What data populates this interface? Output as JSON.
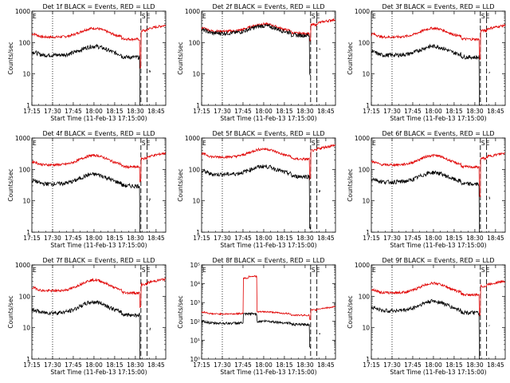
{
  "x_ticks": [
    "17:15",
    "17:30",
    "17:45",
    "18:00",
    "18:15",
    "18:30",
    "18:45"
  ],
  "x_start_minutes": 1035,
  "x_end_minutes": 1132,
  "xlabel": "Start Time (11-Feb-13 17:15:00)",
  "ylabel": "Counts/sec",
  "markers": {
    "S": "S",
    "E": "E"
  },
  "colors": {
    "events": "#000000",
    "lld": "#e00000"
  },
  "panels": [
    {
      "title": "Det 1f BLACK = Events, RED = LLD",
      "ylim": [
        1,
        1000
      ],
      "yticks": [
        "1",
        "10",
        "100",
        "1000"
      ],
      "yvals": [
        1,
        10,
        100,
        1000
      ],
      "lld_base": 150,
      "events_base": 40,
      "hump": 1.9,
      "drop": 0.01
    },
    {
      "title": "Det 2f BLACK = Events, RED = LLD",
      "ylim": [
        1,
        1000
      ],
      "yticks": [
        "1",
        "10",
        "100",
        "1000"
      ],
      "yvals": [
        1,
        10,
        100,
        1000
      ],
      "lld_base": 230,
      "events_base": 200,
      "hump": 1.7,
      "drop": 0.05
    },
    {
      "title": "Det 3f BLACK = Events, RED = LLD",
      "ylim": [
        1,
        1000
      ],
      "yticks": [
        "1",
        "10",
        "100",
        "1000"
      ],
      "yvals": [
        1,
        10,
        100,
        1000
      ],
      "lld_base": 150,
      "events_base": 40,
      "hump": 1.9,
      "drop": 0.02
    },
    {
      "title": "Det 4f BLACK = Events, RED = LLD",
      "ylim": [
        1,
        1000
      ],
      "yticks": [
        "1",
        "10",
        "100",
        "1000"
      ],
      "yvals": [
        1,
        10,
        100,
        1000
      ],
      "lld_base": 140,
      "events_base": 35,
      "hump": 2.0,
      "drop": 0.03
    },
    {
      "title": "Det 5f BLACK = Events, RED = LLD",
      "ylim": [
        1,
        1000
      ],
      "yticks": [
        "1",
        "10",
        "100",
        "1000"
      ],
      "yvals": [
        1,
        10,
        100,
        1000
      ],
      "lld_base": 250,
      "events_base": 70,
      "hump": 1.8,
      "drop": 0.02
    },
    {
      "title": "Det 6f BLACK = Events, RED = LLD",
      "ylim": [
        1,
        1000
      ],
      "yticks": [
        "1",
        "10",
        "100",
        "1000"
      ],
      "yvals": [
        1,
        10,
        100,
        1000
      ],
      "lld_base": 140,
      "events_base": 40,
      "hump": 2.0,
      "drop": 0.01
    },
    {
      "title": "Det 7f BLACK = Events, RED = LLD",
      "ylim": [
        1,
        1000
      ],
      "yticks": [
        "1",
        "10",
        "100",
        "1000"
      ],
      "yvals": [
        1,
        10,
        100,
        1000
      ],
      "lld_base": 150,
      "events_base": 30,
      "hump": 2.2,
      "drop": 0.03
    },
    {
      "title": "Det 8f BLACK = Events, RED = LLD",
      "ylim": [
        1,
        100000
      ],
      "yticks": [
        "10⁰",
        "10¹",
        "10²",
        "10³",
        "10⁴",
        "10⁵"
      ],
      "yvals": [
        1,
        10,
        100,
        1000,
        10000,
        100000
      ],
      "lld_base": 250,
      "events_base": 80,
      "hump": 1.3,
      "drop": 0.05,
      "spike": true
    },
    {
      "title": "Det 9f BLACK = Events, RED = LLD",
      "ylim": [
        1,
        1000
      ],
      "yticks": [
        "1",
        "10",
        "100",
        "1000"
      ],
      "yvals": [
        1,
        10,
        100,
        1000
      ],
      "lld_base": 130,
      "events_base": 35,
      "hump": 2.0,
      "drop": 0.02
    }
  ]
}
